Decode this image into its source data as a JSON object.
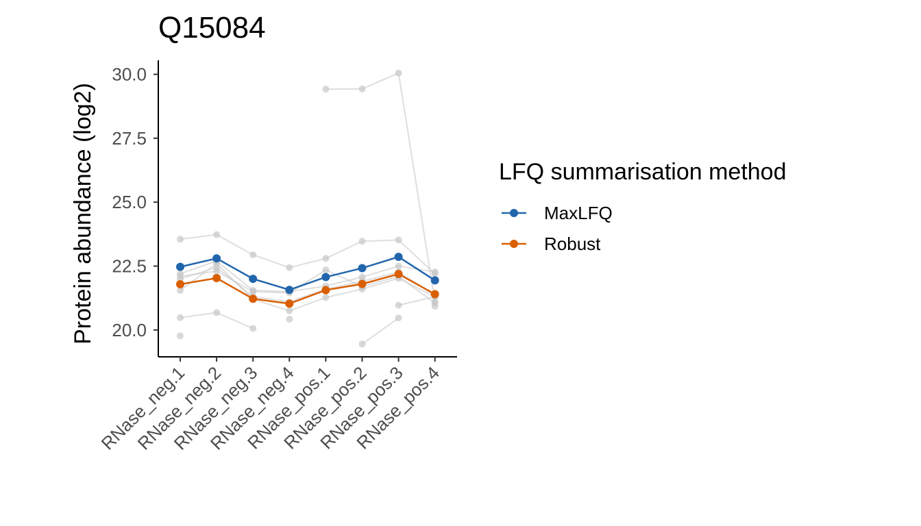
{
  "chart_data": {
    "type": "line",
    "title": "Q15084",
    "xlabel": "",
    "ylabel": "Protein abundance (log2)",
    "categories": [
      "RNase_neg.1",
      "RNase_neg.2",
      "RNase_neg.3",
      "RNase_neg.4",
      "RNase_pos.1",
      "RNase_pos.2",
      "RNase_pos.3",
      "RNase_pos.4"
    ],
    "yticks": [
      "20.0",
      "22.5",
      "25.0",
      "27.5",
      "30.0"
    ],
    "ylim": [
      18.95,
      30.55
    ],
    "grid": false,
    "legend": {
      "title": "LFQ summarisation method",
      "placement": "right"
    },
    "series": [
      {
        "name": "MaxLFQ",
        "color": "#2166ac",
        "values": [
          22.47,
          22.8,
          22.0,
          21.57,
          22.07,
          22.42,
          22.86,
          21.94
        ]
      },
      {
        "name": "Robust",
        "color": "#d95f02",
        "values": [
          21.79,
          22.03,
          21.22,
          21.03,
          21.56,
          21.8,
          22.19,
          21.4
        ]
      }
    ],
    "peptide_traces": {
      "color": "#c8c8c8",
      "lines": [
        [
          23.55,
          23.73,
          22.94,
          22.44,
          22.8,
          23.47,
          23.52,
          22.2
        ],
        [
          22.2,
          22.7,
          21.55,
          21.5,
          21.72,
          22.07,
          22.5,
          22.27
        ],
        [
          22.0,
          22.45,
          21.3,
          21.1,
          21.6,
          21.9,
          22.27,
          21.35
        ],
        [
          21.55,
          22.6,
          21.2,
          20.75,
          21.27,
          21.6,
          22.02,
          21.3
        ],
        [
          22.1,
          22.3,
          21.5,
          21.45,
          22.35,
          21.7,
          22.1,
          21.05
        ],
        [
          20.48,
          20.68,
          20.06,
          null,
          null,
          null,
          null,
          null
        ],
        [
          19.77,
          null,
          null,
          null,
          null,
          null,
          null,
          null
        ],
        [
          null,
          null,
          null,
          20.42,
          null,
          null,
          null,
          null
        ],
        [
          null,
          null,
          null,
          null,
          29.42,
          29.43,
          30.05,
          21.1
        ],
        [
          null,
          null,
          null,
          null,
          null,
          19.45,
          20.47,
          null
        ],
        [
          null,
          null,
          null,
          null,
          null,
          null,
          20.97,
          21.3
        ],
        [
          null,
          null,
          null,
          null,
          null,
          null,
          null,
          20.93
        ]
      ]
    }
  }
}
